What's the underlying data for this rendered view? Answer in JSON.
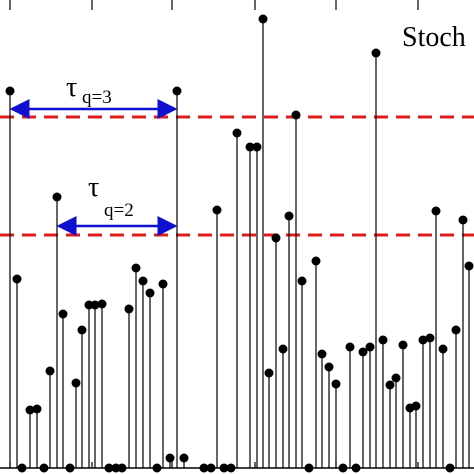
{
  "chart_data": {
    "type": "stem",
    "title": "Stoch",
    "x": [
      10,
      17,
      22,
      30,
      37,
      44,
      50,
      57,
      63,
      70,
      76,
      82,
      89,
      95,
      102,
      109,
      116,
      122,
      129,
      136,
      143,
      150,
      157,
      163,
      170,
      177,
      184,
      204,
      211,
      217,
      224,
      231,
      237,
      250,
      257,
      263,
      269,
      276,
      283,
      289,
      296,
      302,
      309,
      316,
      322,
      329,
      336,
      343,
      350,
      356,
      363,
      370,
      376,
      383,
      390,
      396,
      403,
      410,
      416,
      423,
      430,
      436,
      443,
      450,
      456,
      463,
      469
    ],
    "values": [
      377,
      189,
      0,
      58,
      59,
      0,
      97,
      271,
      154,
      0,
      85,
      138,
      163,
      163,
      164,
      0,
      0,
      0,
      159,
      200,
      187,
      175,
      0,
      184,
      10,
      377,
      10,
      0,
      0,
      258,
      0,
      0,
      335,
      321,
      321,
      449,
      95,
      230,
      119,
      252,
      353,
      187,
      0,
      207,
      114,
      101,
      84,
      0,
      121,
      0,
      116,
      121,
      415,
      128,
      83,
      90,
      123,
      60,
      62,
      128,
      130,
      257,
      119,
      0,
      138,
      248,
      202
    ],
    "color": "#000000",
    "xlim": [
      0,
      474
    ],
    "ylim": [
      0,
      468
    ],
    "xticks": [
      10,
      92,
      172,
      255,
      336,
      418
    ],
    "hlines": [
      351,
      233
    ],
    "hline_color": "#dd1c1c",
    "annotations": [
      {
        "symbol": "τ",
        "text": "q=3"
      },
      {
        "symbol": "τ",
        "text": "q=2"
      }
    ],
    "arrow_color": "#1010d0"
  }
}
